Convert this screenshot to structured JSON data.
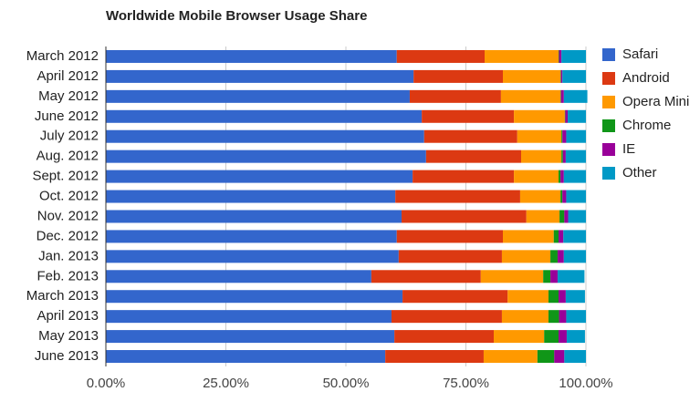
{
  "chart_data": {
    "type": "stacked-bar-horizontal",
    "title": "Worldwide Mobile Browser Usage Share",
    "categories": [
      "March 2012",
      "April 2012",
      "May 2012",
      "June 2012",
      "July 2012",
      "Aug. 2012",
      "Sept. 2012",
      "Oct. 2012",
      "Nov. 2012",
      "Dec. 2012",
      "Jan. 2013",
      "Feb. 2013",
      "March 2013",
      "April 2013",
      "May 2013",
      "June 2013"
    ],
    "series": [
      {
        "name": "Safari",
        "color": "#3366cc",
        "values": [
          60.6,
          64.1,
          63.3,
          65.8,
          66.3,
          66.7,
          63.9,
          60.3,
          61.6,
          60.6,
          61.0,
          55.3,
          61.8,
          59.5,
          60.1,
          58.2
        ]
      },
      {
        "name": "Android",
        "color": "#dc3912",
        "values": [
          18.3,
          18.6,
          19.0,
          19.2,
          19.4,
          19.8,
          21.1,
          26.0,
          26.0,
          22.1,
          21.5,
          22.8,
          21.9,
          23.0,
          20.7,
          20.5
        ]
      },
      {
        "name": "Opera Mini",
        "color": "#ff9900",
        "values": [
          15.4,
          12.0,
          12.4,
          10.6,
          9.2,
          8.4,
          9.3,
          8.4,
          6.9,
          10.6,
          10.1,
          13.0,
          8.5,
          9.7,
          10.5,
          11.2
        ]
      },
      {
        "name": "Chrome",
        "color": "#109618",
        "values": [
          0.1,
          0.1,
          0.1,
          0.1,
          0.2,
          0.3,
          0.4,
          0.4,
          1.0,
          1.0,
          1.5,
          1.5,
          2.1,
          2.2,
          3.0,
          3.5
        ]
      },
      {
        "name": "IE",
        "color": "#990099",
        "values": [
          0.5,
          0.3,
          0.6,
          0.5,
          0.8,
          0.6,
          0.7,
          0.8,
          0.8,
          1.0,
          1.3,
          1.5,
          1.5,
          1.5,
          1.7,
          2.1
        ]
      },
      {
        "name": "Other",
        "color": "#0099c6",
        "values": [
          5.1,
          4.9,
          4.9,
          3.8,
          4.1,
          4.2,
          4.6,
          4.1,
          3.7,
          4.7,
          4.6,
          5.6,
          4.0,
          4.1,
          3.8,
          4.5
        ]
      }
    ],
    "xlim": [
      0,
      100
    ],
    "xticks": [
      {
        "value": 0,
        "label": "0.00%"
      },
      {
        "value": 25,
        "label": "25.00%"
      },
      {
        "value": 50,
        "label": "50.00%"
      },
      {
        "value": 75,
        "label": "75.00%"
      },
      {
        "value": 100,
        "label": "100.00%"
      }
    ],
    "grid": true,
    "legend": "right"
  }
}
